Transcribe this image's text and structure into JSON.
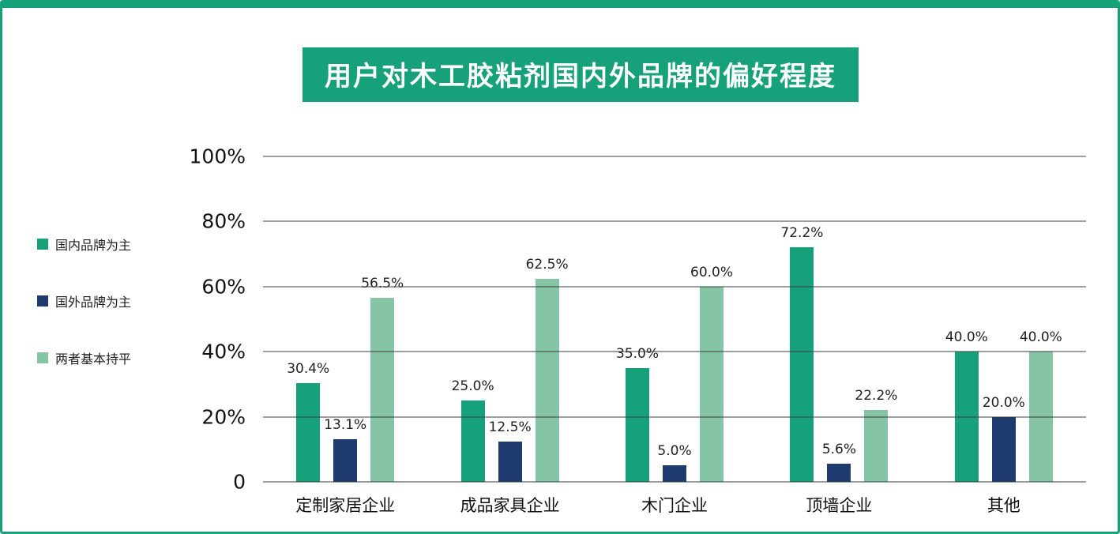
{
  "page": {
    "frame_color": "#17a17b",
    "background_color": "#ffffff"
  },
  "chart_data": {
    "type": "bar",
    "title": "用户对木工胶粘剂国内外品牌的偏好程度",
    "categories": [
      "定制家居企业",
      "成品家具企业",
      "木门企业",
      "顶墙企业",
      "其他"
    ],
    "series": [
      {
        "name": "国内品牌为主",
        "color": "#17a17b",
        "values": [
          30.4,
          25.0,
          35.0,
          72.2,
          40.0
        ]
      },
      {
        "name": "国外品牌为主",
        "color": "#1e3a6e",
        "values": [
          13.1,
          12.5,
          5.0,
          5.6,
          20.0
        ]
      },
      {
        "name": "两者基本持平",
        "color": "#85c5a6",
        "values": [
          56.5,
          62.5,
          60.0,
          22.2,
          40.0
        ]
      }
    ],
    "value_suffix": "%",
    "yticks": [
      "0",
      "20%",
      "40%",
      "60%",
      "80%",
      "100%"
    ],
    "ylim": [
      0,
      100
    ],
    "grid": true,
    "legend_position": "left",
    "data_labels": true
  }
}
